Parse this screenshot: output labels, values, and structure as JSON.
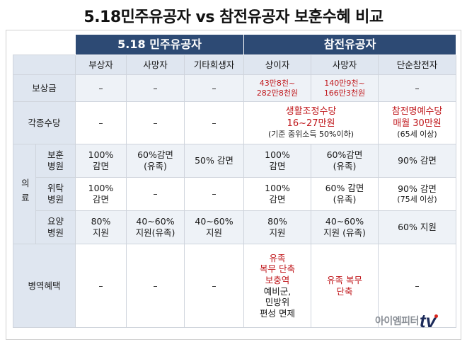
{
  "title": "5.18민주유공자 vs 참전유공자 보훈수혜 비교",
  "groups": {
    "left": "5.18 민주유공자",
    "right": "참전유공자"
  },
  "columns": [
    "부상자",
    "사망자",
    "기타희생자",
    "상이자",
    "사망자",
    "단순참전자"
  ],
  "rows": {
    "compensation": {
      "label": "보상금",
      "cells": [
        "–",
        "–",
        "–",
        "43만8천~\n282만8천원",
        "140만9천~\n166만3천원",
        "–"
      ]
    },
    "allowance": {
      "label": "각종수당",
      "cells": [
        "–",
        "–",
        "–"
      ],
      "merged_main": "생활조정수당\n16~27만원",
      "merged_note": "(기준 중위소득 50%이하)",
      "last_main": "참전명예수당\n매월 30만원",
      "last_note": "(65세 이상)"
    },
    "medical_label": "의료",
    "bohun": {
      "label": "보훈\n병원",
      "cells": [
        "100%\n감면",
        "60%감면\n(유족)",
        "50% 감면",
        "100%\n감면",
        "60%감면\n(유족)",
        "90% 감면"
      ]
    },
    "wiuak": {
      "label": "위탁\n병원",
      "cells": [
        "100%\n감면",
        "–",
        "–",
        "100%\n감면",
        "60% 감면\n(유족)",
        "90% 감면"
      ],
      "last_note": "(75세 이상)"
    },
    "yoyang": {
      "label": "요양\n병원",
      "cells": [
        "80%\n지원",
        "40~60%\n지원(유족)",
        "40~60%\n지원",
        "80%\n지원",
        "40~60%\n지원 (유족)",
        "60% 지원"
      ]
    },
    "military": {
      "label": "병역혜택",
      "cells": [
        "–",
        "–",
        "–"
      ],
      "col4_red": "유족\n복무 단축\n보충역",
      "col4_black": "예비군,\n민방위\n편성 면제",
      "col5_red": "유족 복무\n단축",
      "col6": "–"
    }
  },
  "logo": {
    "text": "아이엠피터",
    "tv": "tv",
    "accent": "#d9251d",
    "brand": "#1c2b5a"
  },
  "colors": {
    "header_bg": "#2d4a74",
    "label_bg": "#dfe6f0",
    "band_bg": "#eef2f7",
    "highlight": "#c0181c"
  }
}
